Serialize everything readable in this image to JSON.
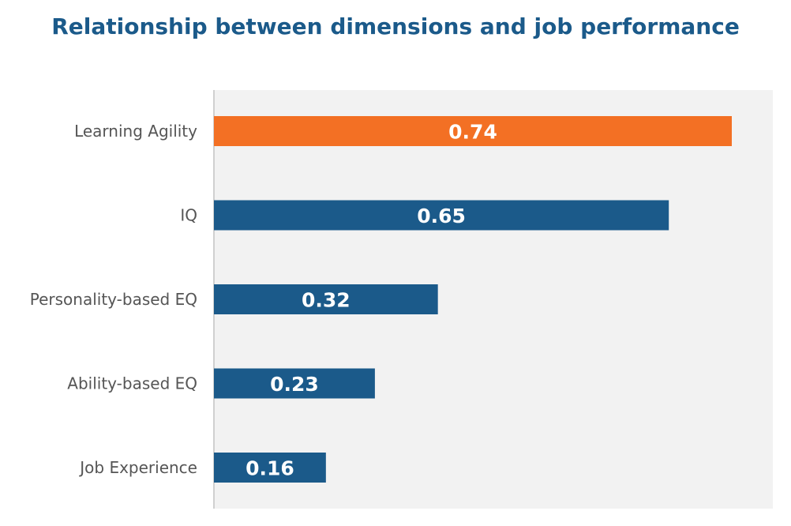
{
  "chart_data": {
    "type": "bar",
    "orientation": "horizontal",
    "title": "Relationship between dimensions and job performance",
    "categories": [
      "Learning Agility",
      "IQ",
      "Personality-based EQ",
      "Ability-based EQ",
      "Job Experience"
    ],
    "values": [
      0.74,
      0.65,
      0.32,
      0.23,
      0.16
    ],
    "data_labels": [
      "0.74",
      "0.65",
      "0.32",
      "0.23",
      "0.16"
    ],
    "xlim": [
      0,
      0.8
    ],
    "grid": false,
    "legend": "none",
    "colors": {
      "highlight": "#f37024",
      "bar": "#1b5a8a",
      "title": "#1b5a8a",
      "plot_background": "#f2f2f2",
      "axis": "#d0d0d0",
      "label": "#555555"
    }
  }
}
